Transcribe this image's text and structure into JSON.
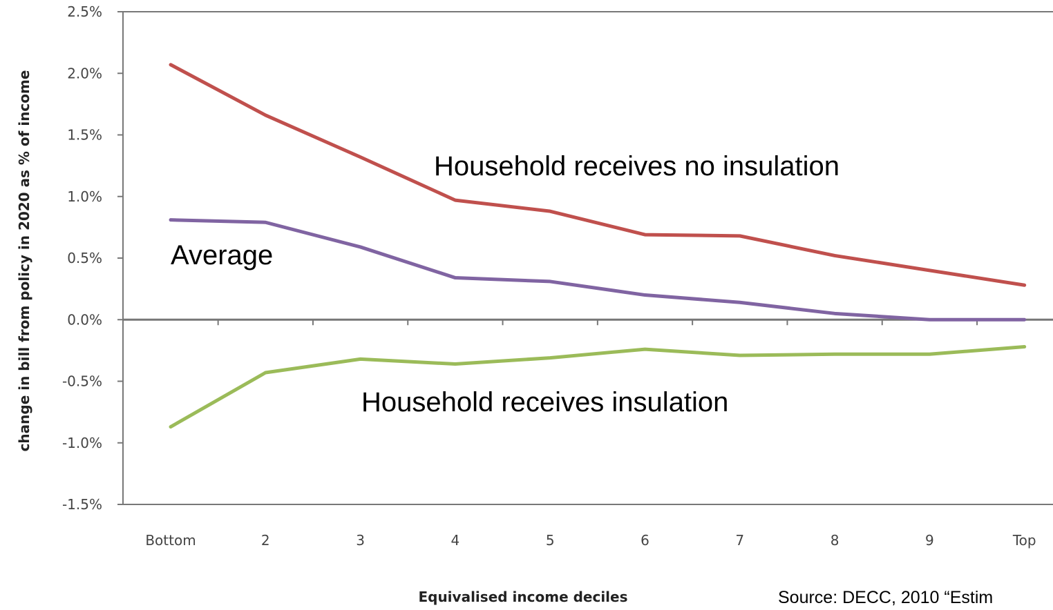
{
  "chart_data": {
    "type": "line",
    "categories": [
      "Bottom",
      "2",
      "3",
      "4",
      "5",
      "6",
      "7",
      "8",
      "9",
      "Top"
    ],
    "ylabel": "change in bill from policy in 2020 as % of income",
    "xlabel": "Equivalised income deciles",
    "ylim": [
      -1.5,
      2.5
    ],
    "y_ticks": [
      2.5,
      2.0,
      1.5,
      1.0,
      0.5,
      0.0,
      -0.5,
      -1.0,
      -1.5
    ],
    "y_tick_labels": [
      "2.5%",
      "2.0%",
      "1.5%",
      "1.0%",
      "0.5%",
      "0.0%",
      "-0.5%",
      "-1.0%",
      "-1.5%"
    ],
    "grid": false,
    "series": [
      {
        "name": "",
        "color": "#c0504d",
        "values": [
          2.07,
          1.66,
          1.32,
          0.97,
          0.88,
          0.69,
          0.68,
          0.52,
          0.4,
          0.28
        ]
      },
      {
        "name": "",
        "color": "#8064a2",
        "values": [
          0.81,
          0.79,
          0.59,
          0.34,
          0.31,
          0.2,
          0.14,
          0.05,
          0.0,
          0.0
        ]
      },
      {
        "name": "",
        "color": "#9bbb59",
        "values": [
          -0.87,
          -0.43,
          -0.32,
          -0.36,
          -0.31,
          -0.24,
          -0.29,
          -0.28,
          -0.28,
          -0.22
        ]
      }
    ],
    "annotations": [
      {
        "text": "Household receives no insulation"
      },
      {
        "text": "Average"
      },
      {
        "text": "Household receives insulation"
      }
    ]
  },
  "source_text": "Source: DECC, 2010 “Estim"
}
